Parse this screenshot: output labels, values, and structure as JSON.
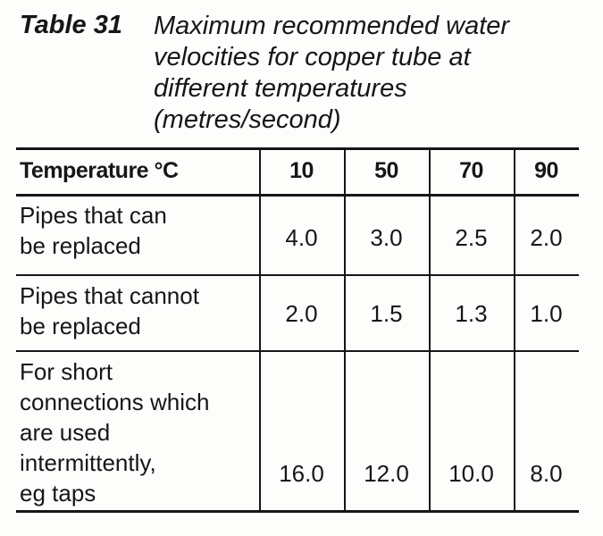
{
  "table": {
    "label": "Table 31",
    "caption": [
      "Maximum recommended water",
      "velocities for copper tube at",
      "different temperatures",
      "(metres/second)"
    ],
    "header": [
      "Temperature °C",
      "10",
      "50",
      "70",
      "90"
    ],
    "rows": [
      {
        "label": [
          "Pipes that can",
          "be replaced"
        ],
        "values": [
          "4.0",
          "3.0",
          "2.5",
          "2.0"
        ]
      },
      {
        "label": [
          "Pipes that cannot",
          "be replaced"
        ],
        "values": [
          "2.0",
          "1.5",
          "1.3",
          "1.0"
        ]
      },
      {
        "label": [
          "For short",
          "connections which",
          "are used",
          "intermittently,",
          "eg taps"
        ],
        "values": [
          "16.0",
          "12.0",
          "10.0",
          "8.0"
        ]
      }
    ]
  }
}
